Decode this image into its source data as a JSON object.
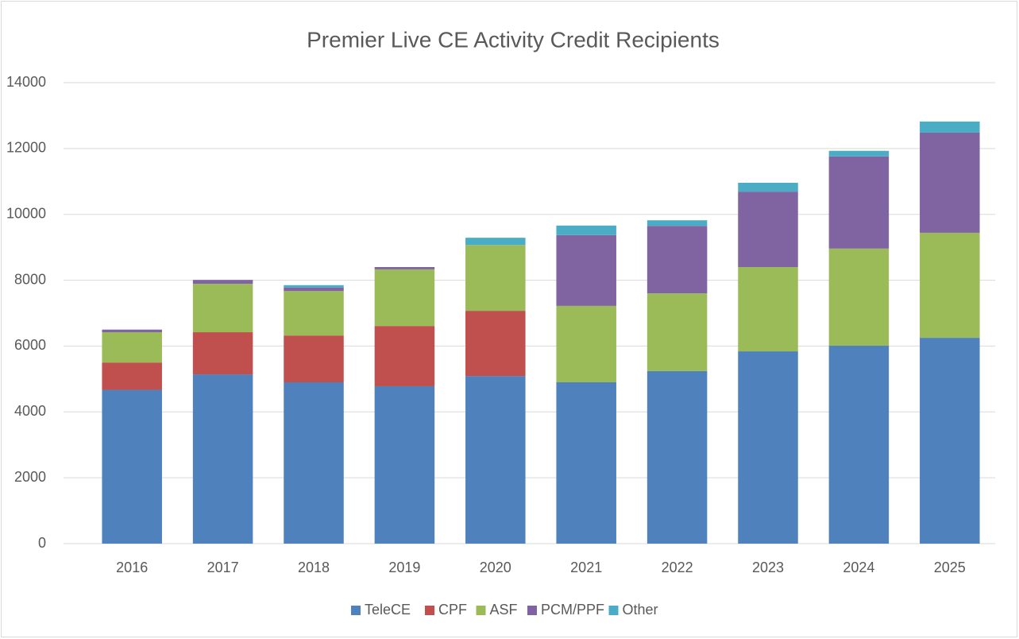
{
  "chart_data": {
    "type": "stacked_bar",
    "title": "Premier Live CE Activity Credit Recipients",
    "categories": [
      "2016",
      "2017",
      "2018",
      "2019",
      "2020",
      "2021",
      "2022",
      "2023",
      "2024",
      "2025"
    ],
    "series": [
      {
        "name": "TeleCE",
        "color": "#4f81bd",
        "values": [
          4670,
          5140,
          4900,
          4780,
          5090,
          4900,
          5240,
          5840,
          6010,
          6250
        ]
      },
      {
        "name": "CPF",
        "color": "#c0504d",
        "values": [
          830,
          1280,
          1420,
          1830,
          1980,
          0,
          0,
          0,
          0,
          0
        ]
      },
      {
        "name": "ASF",
        "color": "#9bbb59",
        "values": [
          920,
          1470,
          1350,
          1720,
          2000,
          2320,
          2360,
          2560,
          2950,
          3190
        ]
      },
      {
        "name": "PCM/PPF",
        "color": "#8064a2",
        "values": [
          80,
          120,
          110,
          70,
          0,
          2150,
          2050,
          2290,
          2800,
          3040
        ]
      },
      {
        "name": "Other",
        "color": "#4bacc6",
        "values": [
          0,
          0,
          70,
          0,
          220,
          290,
          170,
          270,
          170,
          340
        ]
      }
    ],
    "ylim": [
      0,
      14000
    ],
    "yticks": [
      0,
      2000,
      4000,
      6000,
      8000,
      10000,
      12000,
      14000
    ],
    "grid": true,
    "legend": "bottom"
  }
}
